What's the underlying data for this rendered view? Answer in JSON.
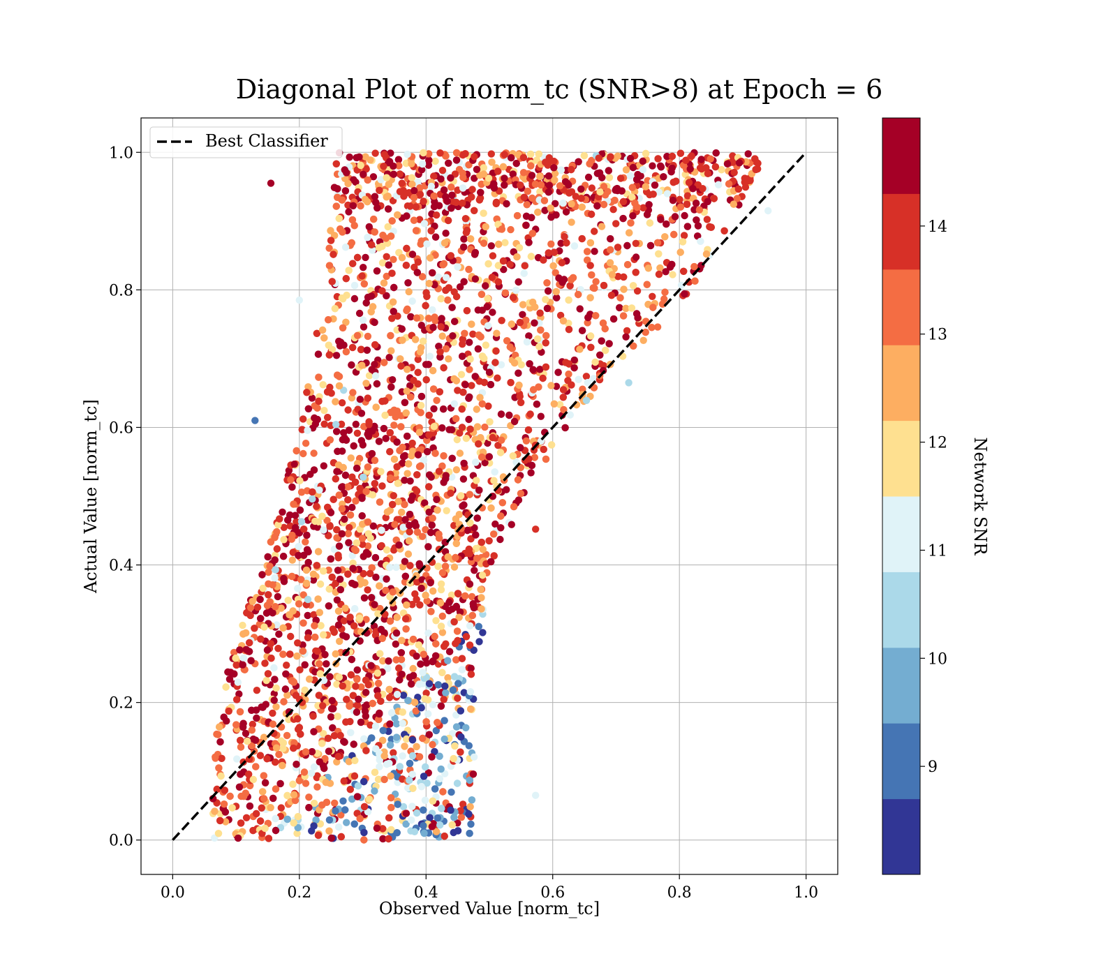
{
  "chart_data": {
    "type": "scatter",
    "title": "Diagonal Plot of norm_tc (SNR>8) at Epoch = 6",
    "xlabel": "Observed Value [norm_tc]",
    "ylabel": "Actual Value [norm_tc]",
    "xlim": [
      -0.05,
      1.05
    ],
    "ylim": [
      -0.05,
      1.05
    ],
    "x_ticks": [
      "0.0",
      "0.2",
      "0.4",
      "0.6",
      "0.8",
      "1.0"
    ],
    "y_ticks": [
      "0.0",
      "0.2",
      "0.4",
      "0.6",
      "0.8",
      "1.0"
    ],
    "grid": true,
    "legend": {
      "position": "top-left",
      "entries": [
        "Best Classifier"
      ]
    },
    "reference_line": {
      "name": "Best Classifier",
      "style": "dashed",
      "color": "#000000",
      "x": [
        0,
        1
      ],
      "y": [
        0,
        1
      ]
    },
    "colorbar": {
      "label": "Network SNR",
      "range": [
        8,
        15
      ],
      "ticks": [
        "9",
        "10",
        "11",
        "12",
        "13",
        "14"
      ],
      "colormap": "RdYlBu_r",
      "levels": [
        {
          "from": 8.0,
          "to": 8.7,
          "color": "#313695"
        },
        {
          "from": 8.7,
          "to": 9.4,
          "color": "#4575b4"
        },
        {
          "from": 9.4,
          "to": 10.1,
          "color": "#74add1"
        },
        {
          "from": 10.1,
          "to": 10.8,
          "color": "#abd9e9"
        },
        {
          "from": 10.8,
          "to": 11.5,
          "color": "#e0f3f8"
        },
        {
          "from": 11.5,
          "to": 12.2,
          "color": "#fee090"
        },
        {
          "from": 12.2,
          "to": 12.9,
          "color": "#fdae61"
        },
        {
          "from": 12.9,
          "to": 13.6,
          "color": "#f46d43"
        },
        {
          "from": 13.6,
          "to": 14.3,
          "color": "#d73027"
        },
        {
          "from": 14.3,
          "to": 15.0,
          "color": "#a50026"
        }
      ]
    },
    "distribution": {
      "note": "Thousands of points forming a band around the diagonal; observed range widens with actual value",
      "bands": [
        {
          "y": 0.0,
          "x_min": 0.06,
          "x_max": 0.47
        },
        {
          "y": 0.2,
          "x_min": 0.07,
          "x_max": 0.48
        },
        {
          "y": 0.4,
          "x_min": 0.14,
          "x_max": 0.5
        },
        {
          "y": 0.6,
          "x_min": 0.2,
          "x_max": 0.62
        },
        {
          "y": 0.8,
          "x_min": 0.24,
          "x_max": 0.82
        },
        {
          "y": 1.0,
          "x_min": 0.26,
          "x_max": 0.94
        }
      ],
      "outliers": [
        {
          "x": 0.155,
          "y": 0.955,
          "snr": 14.8
        },
        {
          "x": 0.13,
          "y": 0.61,
          "snr": 9.2
        },
        {
          "x": 0.2,
          "y": 0.785,
          "snr": 11.0
        },
        {
          "x": 0.573,
          "y": 0.065,
          "snr": 11.2
        },
        {
          "x": 0.573,
          "y": 0.452,
          "snr": 14.2
        },
        {
          "x": 0.94,
          "y": 0.915,
          "snr": 11.0
        },
        {
          "x": 0.72,
          "y": 0.665,
          "snr": 10.5
        }
      ]
    }
  }
}
